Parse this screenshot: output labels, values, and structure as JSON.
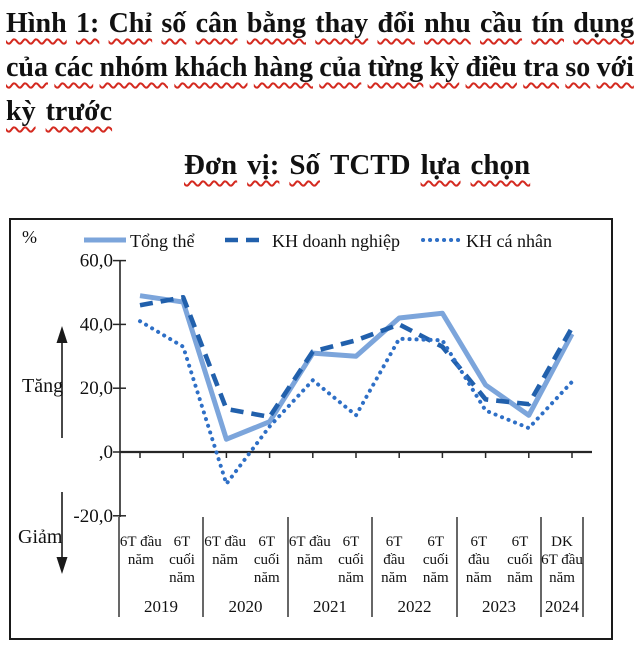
{
  "document": {
    "figure_title_lines": [
      [
        "Hình",
        "1:",
        "Chỉ",
        "số",
        "cân",
        "bằng",
        "thay",
        "đổi",
        "nhu",
        "cầu",
        "tín",
        "dụng"
      ],
      [
        "của",
        "các",
        "nhóm",
        "khách",
        "hàng",
        "của",
        "từng",
        "kỳ",
        "điều",
        "tra",
        "so",
        "với"
      ],
      [
        "kỳ",
        "trước"
      ]
    ],
    "subtitle_words": [
      {
        "t": "Đơn",
        "sq": true
      },
      {
        "t": "vị:",
        "sq": true
      },
      {
        "t": "Số",
        "sq": true
      },
      {
        "t": "TCTD",
        "sq": false
      },
      {
        "t": "lựa",
        "sq": true
      },
      {
        "t": "chọn",
        "sq": true
      }
    ],
    "squiggle_color": "#d42a20"
  },
  "chart": {
    "percent_label": "%",
    "increase_label": "Tăng",
    "decrease_label": "Giảm",
    "frame_color": "#1a1a1a",
    "axis_color": "#262626"
  },
  "chart_data": {
    "type": "line",
    "title": "Chỉ số cân bằng thay đổi nhu cầu tín dụng của các nhóm khách hàng của từng kỳ điều tra so với kỳ trước",
    "unit": "Số TCTD lựa chọn (%)",
    "ylim": [
      -20,
      60
    ],
    "grid": false,
    "legend_position": "top",
    "y_ticks": [
      {
        "value": 60,
        "label": "60,0"
      },
      {
        "value": 40,
        "label": "40,0"
      },
      {
        "value": 20,
        "label": "20,0"
      },
      {
        "value": 0,
        "label": ",0"
      },
      {
        "value": -20,
        "label": "-20,0"
      }
    ],
    "categories": [
      "2019 6T đầu năm",
      "2019 6T cuối năm",
      "2020 6T đầu năm",
      "2020 6T cuối năm",
      "2021 6T đầu năm",
      "2021 6T cuối năm",
      "2022 6T đầu năm",
      "2022 6T cuối năm",
      "2023 6T đầu năm",
      "2023 6T cuối năm",
      "2024 DK 6T đầu năm"
    ],
    "x_groups": [
      {
        "year": "2019",
        "columns": [
          [
            "6T đầu",
            "năm"
          ],
          [
            "6T",
            "cuối",
            "năm"
          ]
        ]
      },
      {
        "year": "2020",
        "columns": [
          [
            "6T đầu",
            "năm"
          ],
          [
            "6T",
            "cuối",
            "năm"
          ]
        ]
      },
      {
        "year": "2021",
        "columns": [
          [
            "6T đầu",
            "năm"
          ],
          [
            "6T",
            "cuối",
            "năm"
          ]
        ]
      },
      {
        "year": "2022",
        "columns": [
          [
            "6T",
            "đầu",
            "năm"
          ],
          [
            "6T",
            "cuối",
            "năm"
          ]
        ]
      },
      {
        "year": "2023",
        "columns": [
          [
            "6T",
            "đầu",
            "năm"
          ],
          [
            "6T",
            "cuối",
            "năm"
          ]
        ]
      },
      {
        "year": "2024",
        "columns": [
          [
            "DK",
            "6T đầu",
            "năm"
          ]
        ]
      }
    ],
    "series": [
      {
        "name": "Tổng thể",
        "style": "solid",
        "color": "#7CA5DB",
        "values": [
          49,
          47,
          4,
          9.5,
          31,
          30,
          42,
          43.5,
          21,
          11.5,
          37
        ]
      },
      {
        "name": "KH doanh nghiệp",
        "style": "dashed",
        "color": "#2160AC",
        "values": [
          46,
          48.5,
          13.5,
          11,
          31.5,
          35,
          40,
          33,
          16.5,
          15,
          39
        ]
      },
      {
        "name": "KH cá nhân",
        "style": "dotted",
        "color": "#2E6FC6",
        "values": [
          41,
          33,
          -10,
          8,
          22.5,
          11.5,
          35.5,
          35,
          13,
          7.5,
          22
        ]
      }
    ]
  }
}
